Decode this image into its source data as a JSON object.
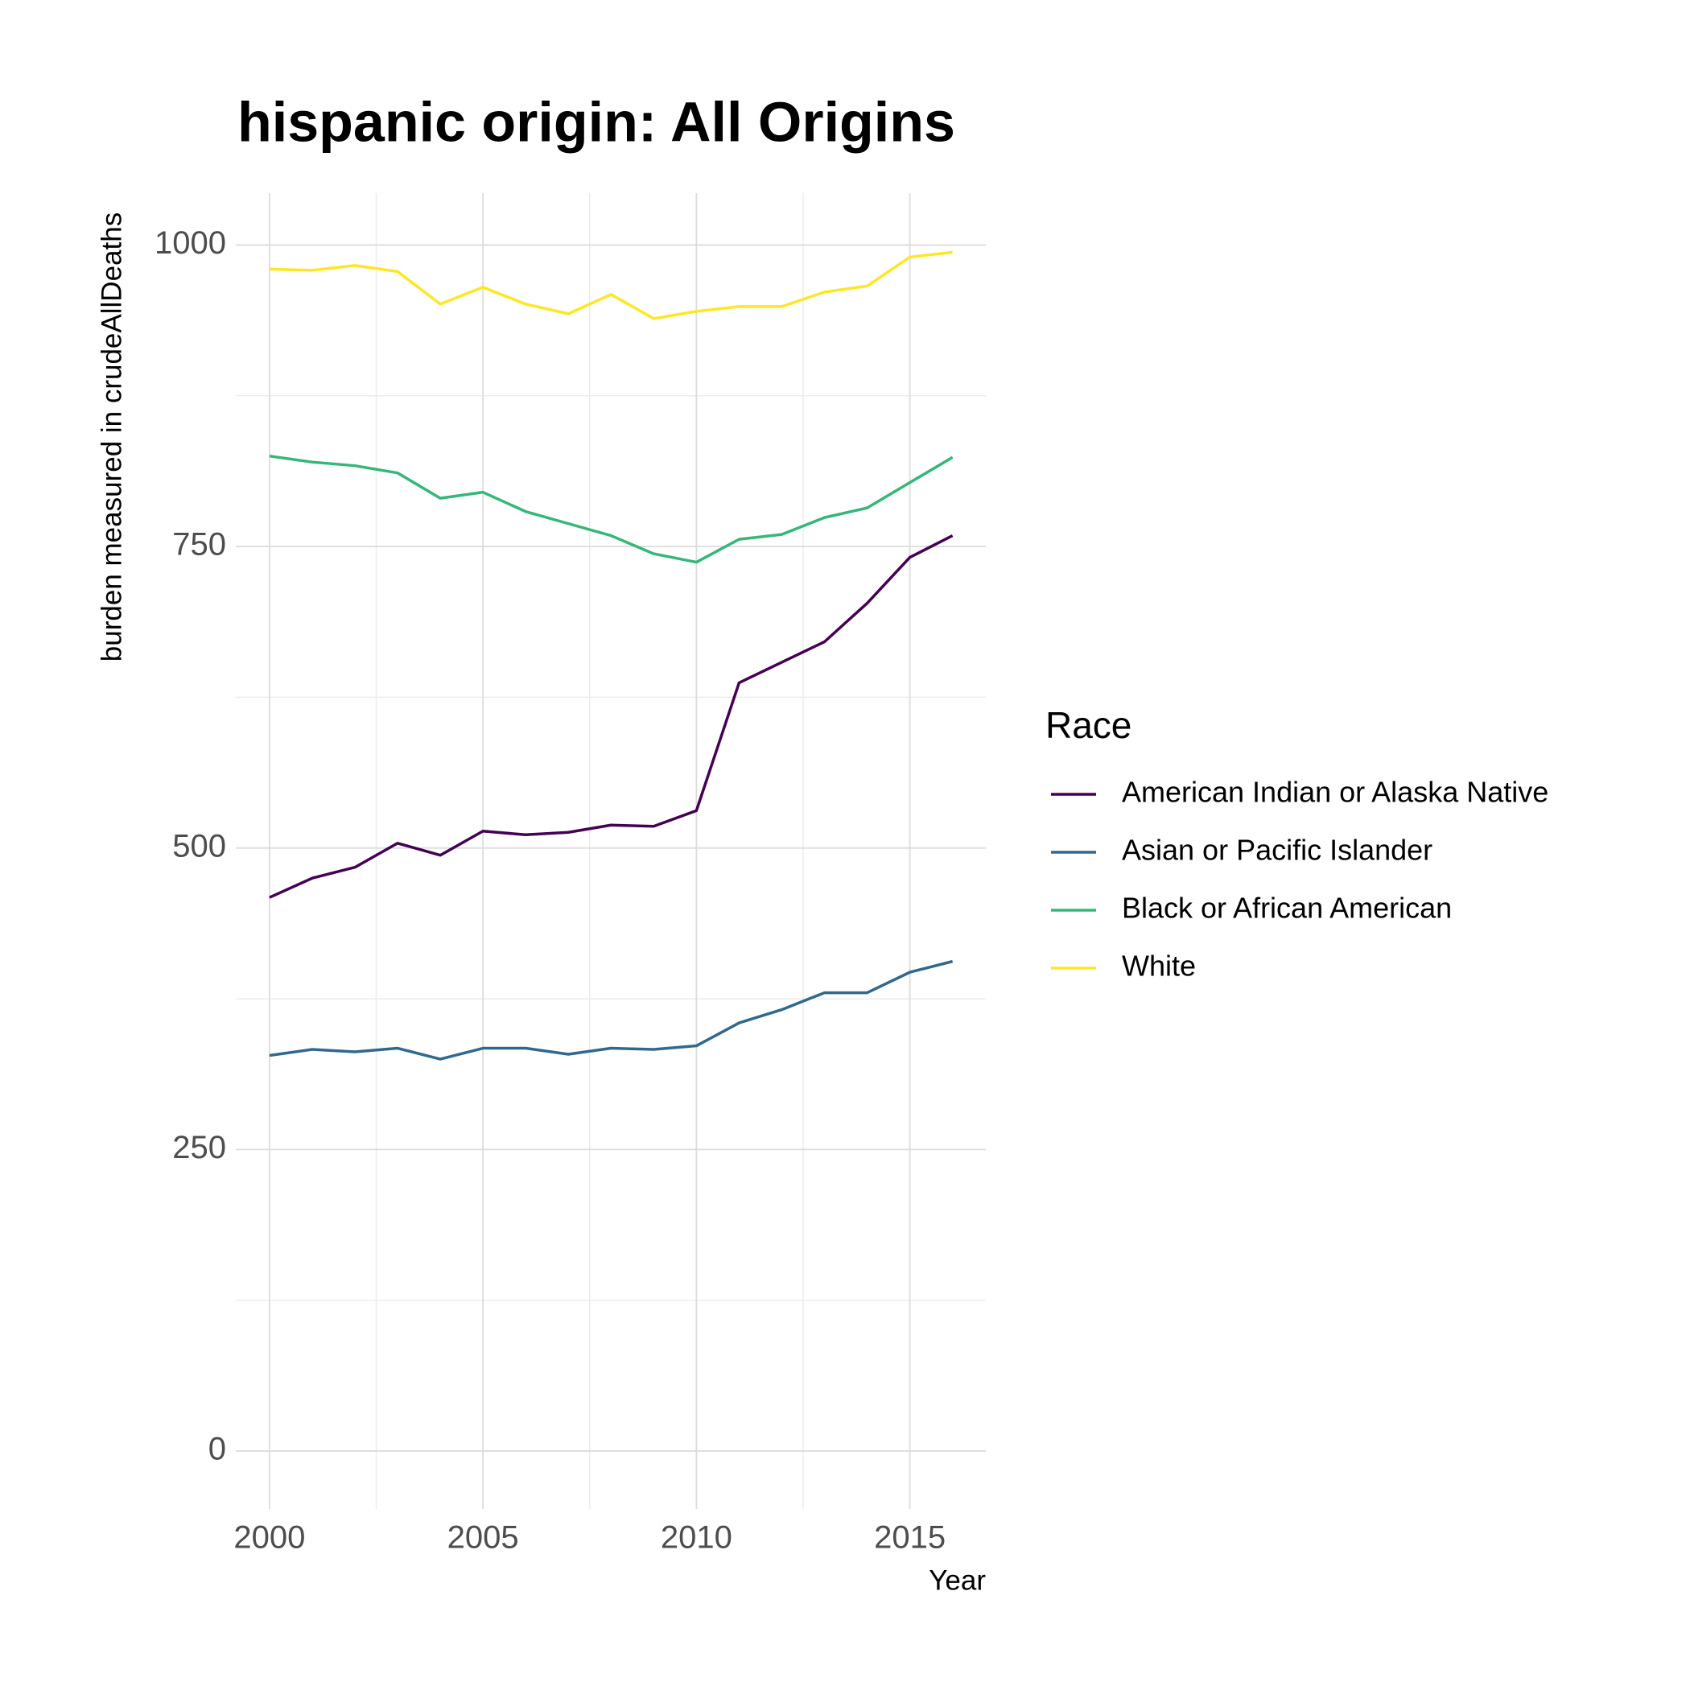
{
  "chart_data": {
    "type": "line",
    "title": "hispanic origin: All Origins",
    "x_label": "Year",
    "y_label": "burden measured in crudeAllDeaths",
    "legend_title": "Race",
    "legend_position": "right",
    "grid": true,
    "x": [
      2000,
      2001,
      2002,
      2003,
      2004,
      2005,
      2006,
      2007,
      2008,
      2009,
      2010,
      2011,
      2012,
      2013,
      2014,
      2015,
      2016
    ],
    "xlim": [
      1999.21,
      2016.78
    ],
    "xticks": [
      2000,
      2005,
      2010,
      2015
    ],
    "ylim": [
      -48,
      1043
    ],
    "yticks": [
      0,
      250,
      500,
      750,
      1000
    ],
    "series": [
      {
        "name": "American Indian or Alaska Native",
        "color": "#440154",
        "values": [
          459,
          475,
          484,
          504,
          494,
          514,
          511,
          513,
          519,
          518,
          531,
          637,
          654,
          671,
          703,
          741,
          759
        ]
      },
      {
        "name": "Asian or Pacific Islander",
        "color": "#31688E",
        "values": [
          328,
          333,
          331,
          334,
          325,
          334,
          334,
          329,
          334,
          333,
          336,
          355,
          366,
          380,
          380,
          397,
          406
        ]
      },
      {
        "name": "Black or African American",
        "color": "#35B779",
        "values": [
          825,
          820,
          817,
          811,
          790,
          795,
          779,
          769,
          759,
          744,
          737,
          756,
          760,
          774,
          782,
          803,
          824
        ]
      },
      {
        "name": "White",
        "color": "#FDE725",
        "values": [
          980,
          979,
          983,
          978,
          951,
          965,
          951,
          943,
          959,
          939,
          945,
          949,
          949,
          961,
          966,
          990,
          994
        ]
      }
    ]
  }
}
